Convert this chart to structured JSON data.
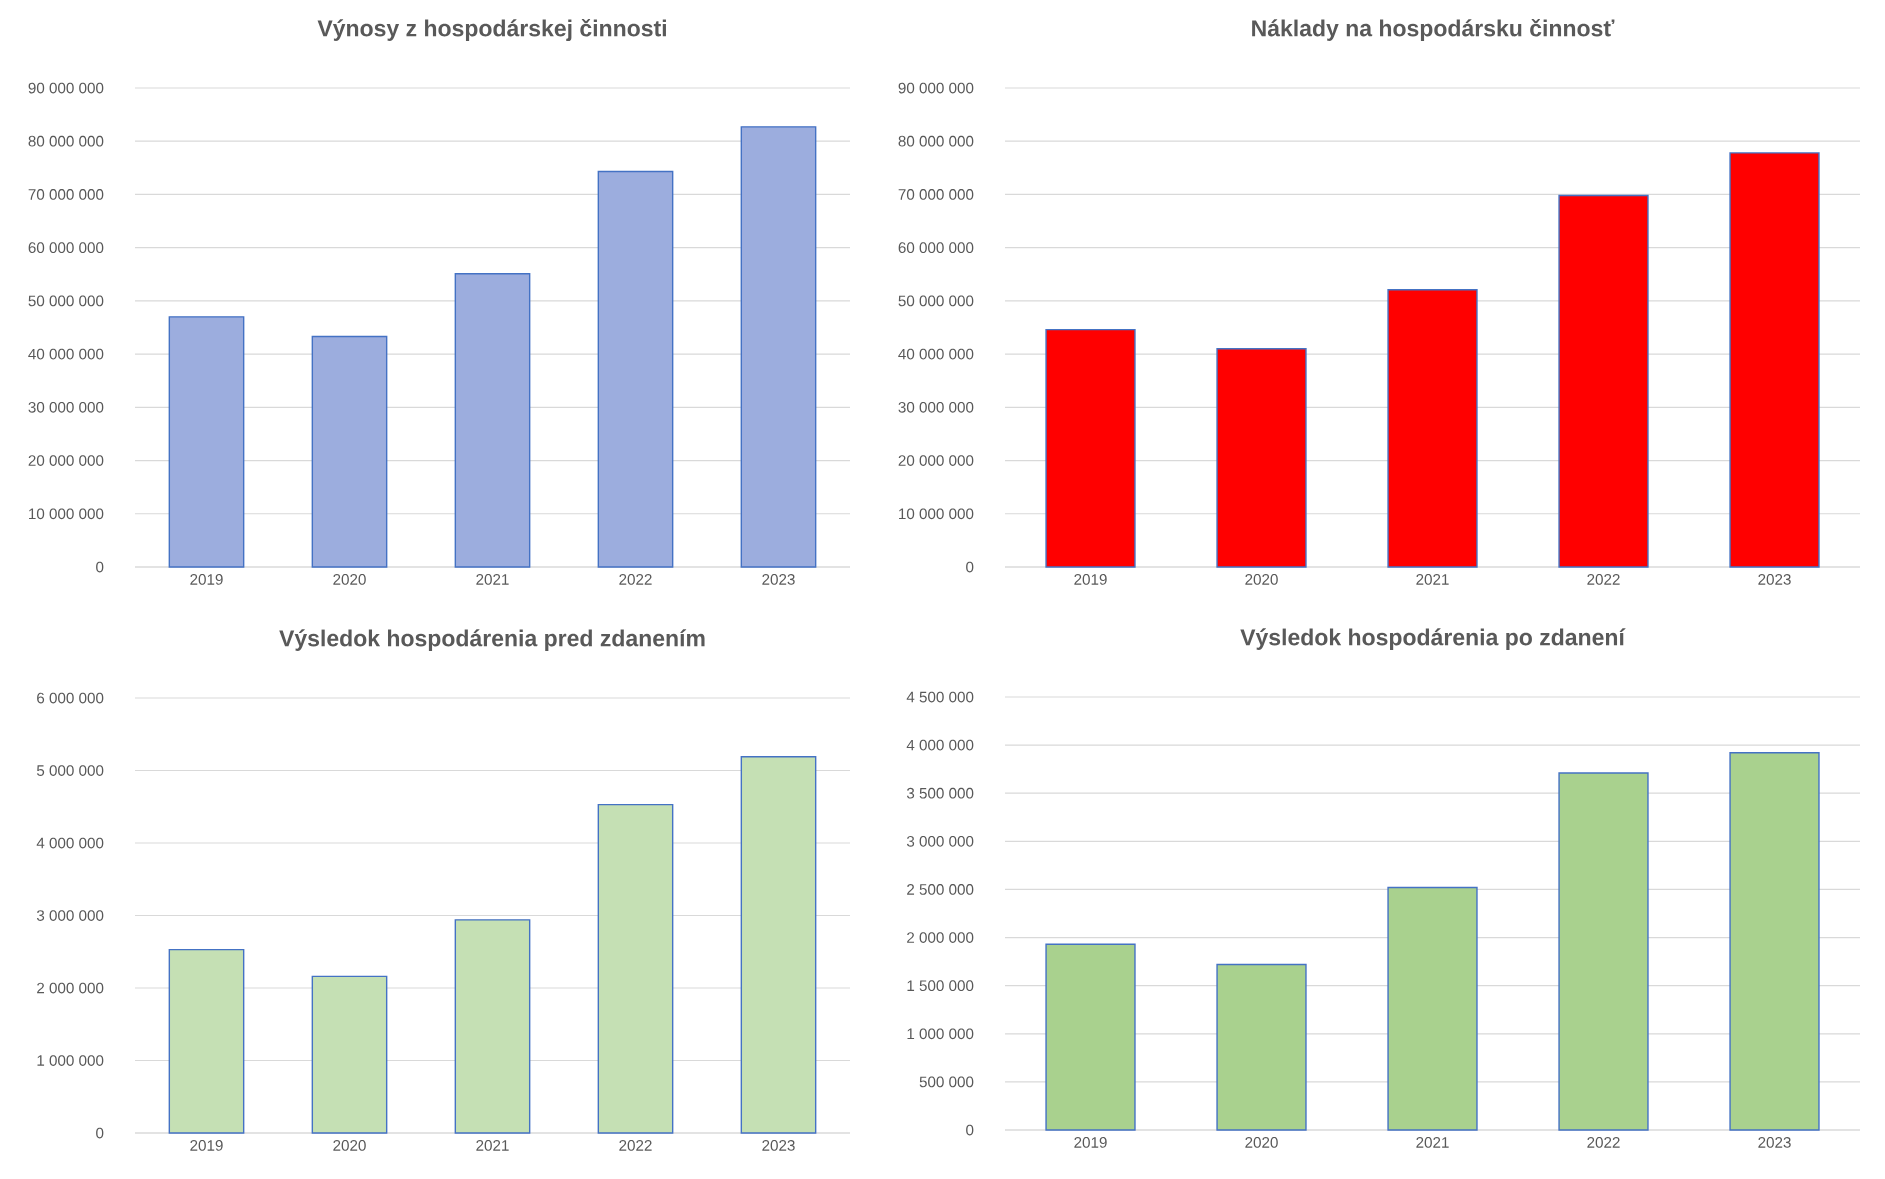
{
  "chart_data": [
    {
      "type": "bar",
      "title": "Výnosy z hospodárskej činnosti",
      "categories": [
        "2019",
        "2020",
        "2021",
        "2022",
        "2023"
      ],
      "values": [
        47000000,
        43300000,
        55100000,
        74300000,
        82700000
      ],
      "color": "#9cadde",
      "ylim": [
        0,
        90000000
      ],
      "yticks": [
        {
          "value": 0,
          "label": "0"
        },
        {
          "value": 10000000,
          "label": "10 000 000"
        },
        {
          "value": 20000000,
          "label": "20 000 000"
        },
        {
          "value": 30000000,
          "label": "30 000 000"
        },
        {
          "value": 40000000,
          "label": "40 000 000"
        },
        {
          "value": 50000000,
          "label": "50 000 000"
        },
        {
          "value": 60000000,
          "label": "60 000 000"
        },
        {
          "value": 70000000,
          "label": "70 000 000"
        },
        {
          "value": 80000000,
          "label": "80 000 000"
        },
        {
          "value": 90000000,
          "label": "90 000 000"
        }
      ],
      "grid": "y"
    },
    {
      "type": "bar",
      "title": "Náklady na hospodársku činnosť",
      "categories": [
        "2019",
        "2020",
        "2021",
        "2022",
        "2023"
      ],
      "values": [
        44600000,
        41000000,
        52100000,
        69800000,
        77800000
      ],
      "color": "#ff0000",
      "ylim": [
        0,
        90000000
      ],
      "yticks": [
        {
          "value": 0,
          "label": "0"
        },
        {
          "value": 10000000,
          "label": "10 000 000"
        },
        {
          "value": 20000000,
          "label": "20 000 000"
        },
        {
          "value": 30000000,
          "label": "30 000 000"
        },
        {
          "value": 40000000,
          "label": "40 000 000"
        },
        {
          "value": 50000000,
          "label": "50 000 000"
        },
        {
          "value": 60000000,
          "label": "60 000 000"
        },
        {
          "value": 70000000,
          "label": "70 000 000"
        },
        {
          "value": 80000000,
          "label": "80 000 000"
        },
        {
          "value": 90000000,
          "label": "90 000 000"
        }
      ],
      "grid": "y"
    },
    {
      "type": "bar",
      "title": "Výsledok hospodárenia pred zdanením",
      "categories": [
        "2019",
        "2020",
        "2021",
        "2022",
        "2023"
      ],
      "values": [
        2530000,
        2160000,
        2940000,
        4530000,
        5190000
      ],
      "color": "#c5e0b4",
      "ylim": [
        0,
        6000000
      ],
      "yticks": [
        {
          "value": 0,
          "label": "0"
        },
        {
          "value": 1000000,
          "label": "1 000 000"
        },
        {
          "value": 2000000,
          "label": "2 000 000"
        },
        {
          "value": 3000000,
          "label": "3 000 000"
        },
        {
          "value": 4000000,
          "label": "4 000 000"
        },
        {
          "value": 5000000,
          "label": "5 000 000"
        },
        {
          "value": 6000000,
          "label": "6 000 000"
        }
      ],
      "grid": "y"
    },
    {
      "type": "bar",
      "title": "Výsledok hospodárenia po zdanení",
      "categories": [
        "2019",
        "2020",
        "2021",
        "2022",
        "2023"
      ],
      "values": [
        1930000,
        1720000,
        2520000,
        3710000,
        3920000
      ],
      "color": "#a9d18e",
      "ylim": [
        0,
        4500000
      ],
      "yticks": [
        {
          "value": 0,
          "label": "0"
        },
        {
          "value": 500000,
          "label": "500 000"
        },
        {
          "value": 1000000,
          "label": "1 000 000"
        },
        {
          "value": 1500000,
          "label": "1 500 000"
        },
        {
          "value": 2000000,
          "label": "2 000 000"
        },
        {
          "value": 2500000,
          "label": "2 500 000"
        },
        {
          "value": 3000000,
          "label": "3 000 000"
        },
        {
          "value": 3500000,
          "label": "3 500 000"
        },
        {
          "value": 4000000,
          "label": "4 000 000"
        },
        {
          "value": 4500000,
          "label": "4 500 000"
        }
      ],
      "grid": "y"
    }
  ]
}
